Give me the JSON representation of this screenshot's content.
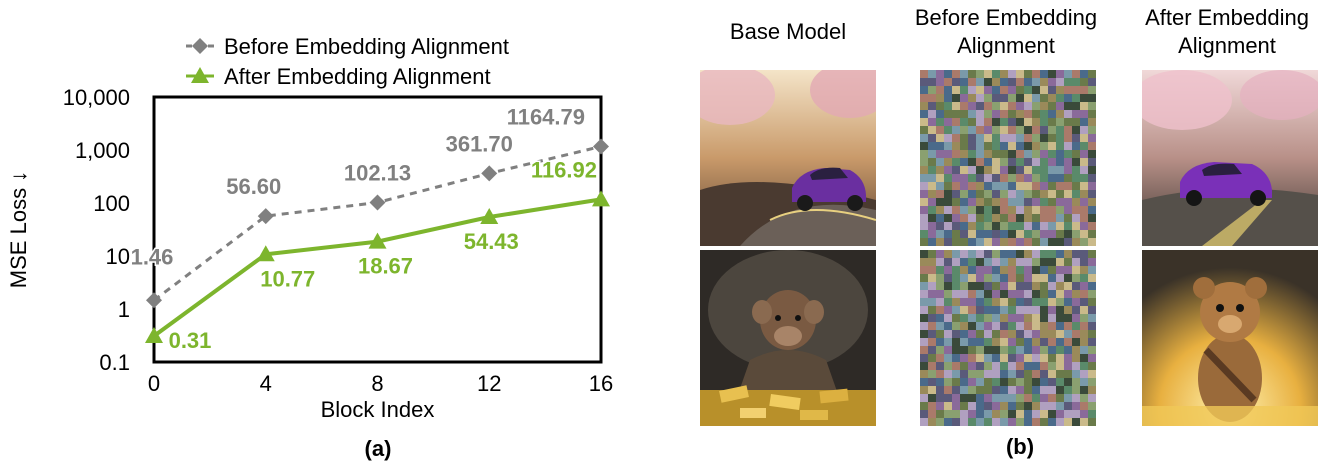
{
  "chart_data": {
    "type": "line",
    "x": [
      0,
      4,
      8,
      12,
      16
    ],
    "xticks": [
      "0",
      "4",
      "8",
      "12",
      "16"
    ],
    "yticks": [
      "0.1",
      "1",
      "10",
      "100",
      "1,000",
      "10,000"
    ],
    "ylim": [
      0.1,
      10000
    ],
    "yscale": "log",
    "xlabel": "Block Index",
    "ylabel": "MSE Loss ↓",
    "legend_position": "top",
    "series": [
      {
        "name": "Before Embedding Alignment",
        "values": [
          1.46,
          56.6,
          102.13,
          361.7,
          1164.79
        ],
        "labels": [
          "1.46",
          "56.60",
          "102.13",
          "361.70",
          "1164.79"
        ],
        "color": "#808080",
        "marker": "diamond",
        "style": "dashed"
      },
      {
        "name": "After Embedding Alignment",
        "values": [
          0.31,
          10.77,
          18.67,
          54.43,
          116.92
        ],
        "labels": [
          "0.31",
          "10.77",
          "18.67",
          "54.43",
          "116.92"
        ],
        "color": "#7db52d",
        "marker": "triangle",
        "style": "solid"
      }
    ]
  },
  "panel_a_label": "(a)",
  "panel_b_label": "(b)",
  "columns": [
    {
      "title_line1": "Base Model",
      "title_line2": ""
    },
    {
      "title_line1": "Before Embedding",
      "title_line2": "Alignment"
    },
    {
      "title_line1": "After Embedding",
      "title_line2": "Alignment"
    }
  ],
  "images": [
    {
      "column": "base",
      "subject": "purple sports car on road"
    },
    {
      "column": "before",
      "subject": "noise"
    },
    {
      "column": "after",
      "subject": "purple sports car on road"
    },
    {
      "column": "base",
      "subject": "creature with gold bars"
    },
    {
      "column": "before",
      "subject": "noise"
    },
    {
      "column": "after",
      "subject": "bear creature in gold"
    }
  ]
}
